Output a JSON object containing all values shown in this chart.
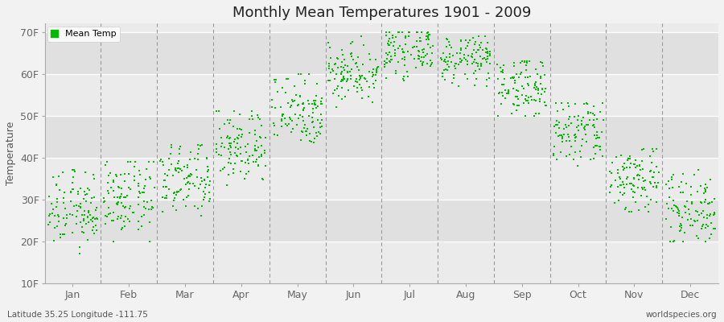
{
  "title": "Monthly Mean Temperatures 1901 - 2009",
  "ylabel": "Temperature",
  "xlabel_months": [
    "Jan",
    "Feb",
    "Mar",
    "Apr",
    "May",
    "Jun",
    "Jul",
    "Aug",
    "Sep",
    "Oct",
    "Nov",
    "Dec"
  ],
  "subtitle_left": "Latitude 35.25 Longitude -111.75",
  "subtitle_right": "worldspecies.org",
  "ytick_labels": [
    "10F",
    "20F",
    "30F",
    "40F",
    "50F",
    "60F",
    "70F"
  ],
  "ytick_values": [
    10,
    20,
    30,
    40,
    50,
    60,
    70
  ],
  "ylim": [
    10,
    72
  ],
  "dot_color": "#00bb00",
  "fig_bg_color": "#f2f2f2",
  "plot_bg_light": "#ebebeb",
  "plot_bg_dark": "#e0e0e0",
  "n_years": 109,
  "monthly_mean_temps": [
    27.5,
    30.0,
    34.5,
    42.5,
    51.5,
    60.5,
    65.5,
    63.5,
    57.0,
    46.0,
    35.0,
    28.0
  ],
  "monthly_std": [
    4.5,
    4.5,
    4.5,
    4.5,
    4.5,
    3.5,
    2.8,
    2.8,
    3.5,
    4.5,
    4.5,
    4.5
  ],
  "monthly_min": [
    17,
    20,
    25,
    33,
    43,
    52,
    58,
    57,
    50,
    38,
    27,
    20
  ],
  "monthly_max": [
    37,
    39,
    43,
    51,
    60,
    69,
    70,
    69,
    63,
    53,
    42,
    37
  ]
}
